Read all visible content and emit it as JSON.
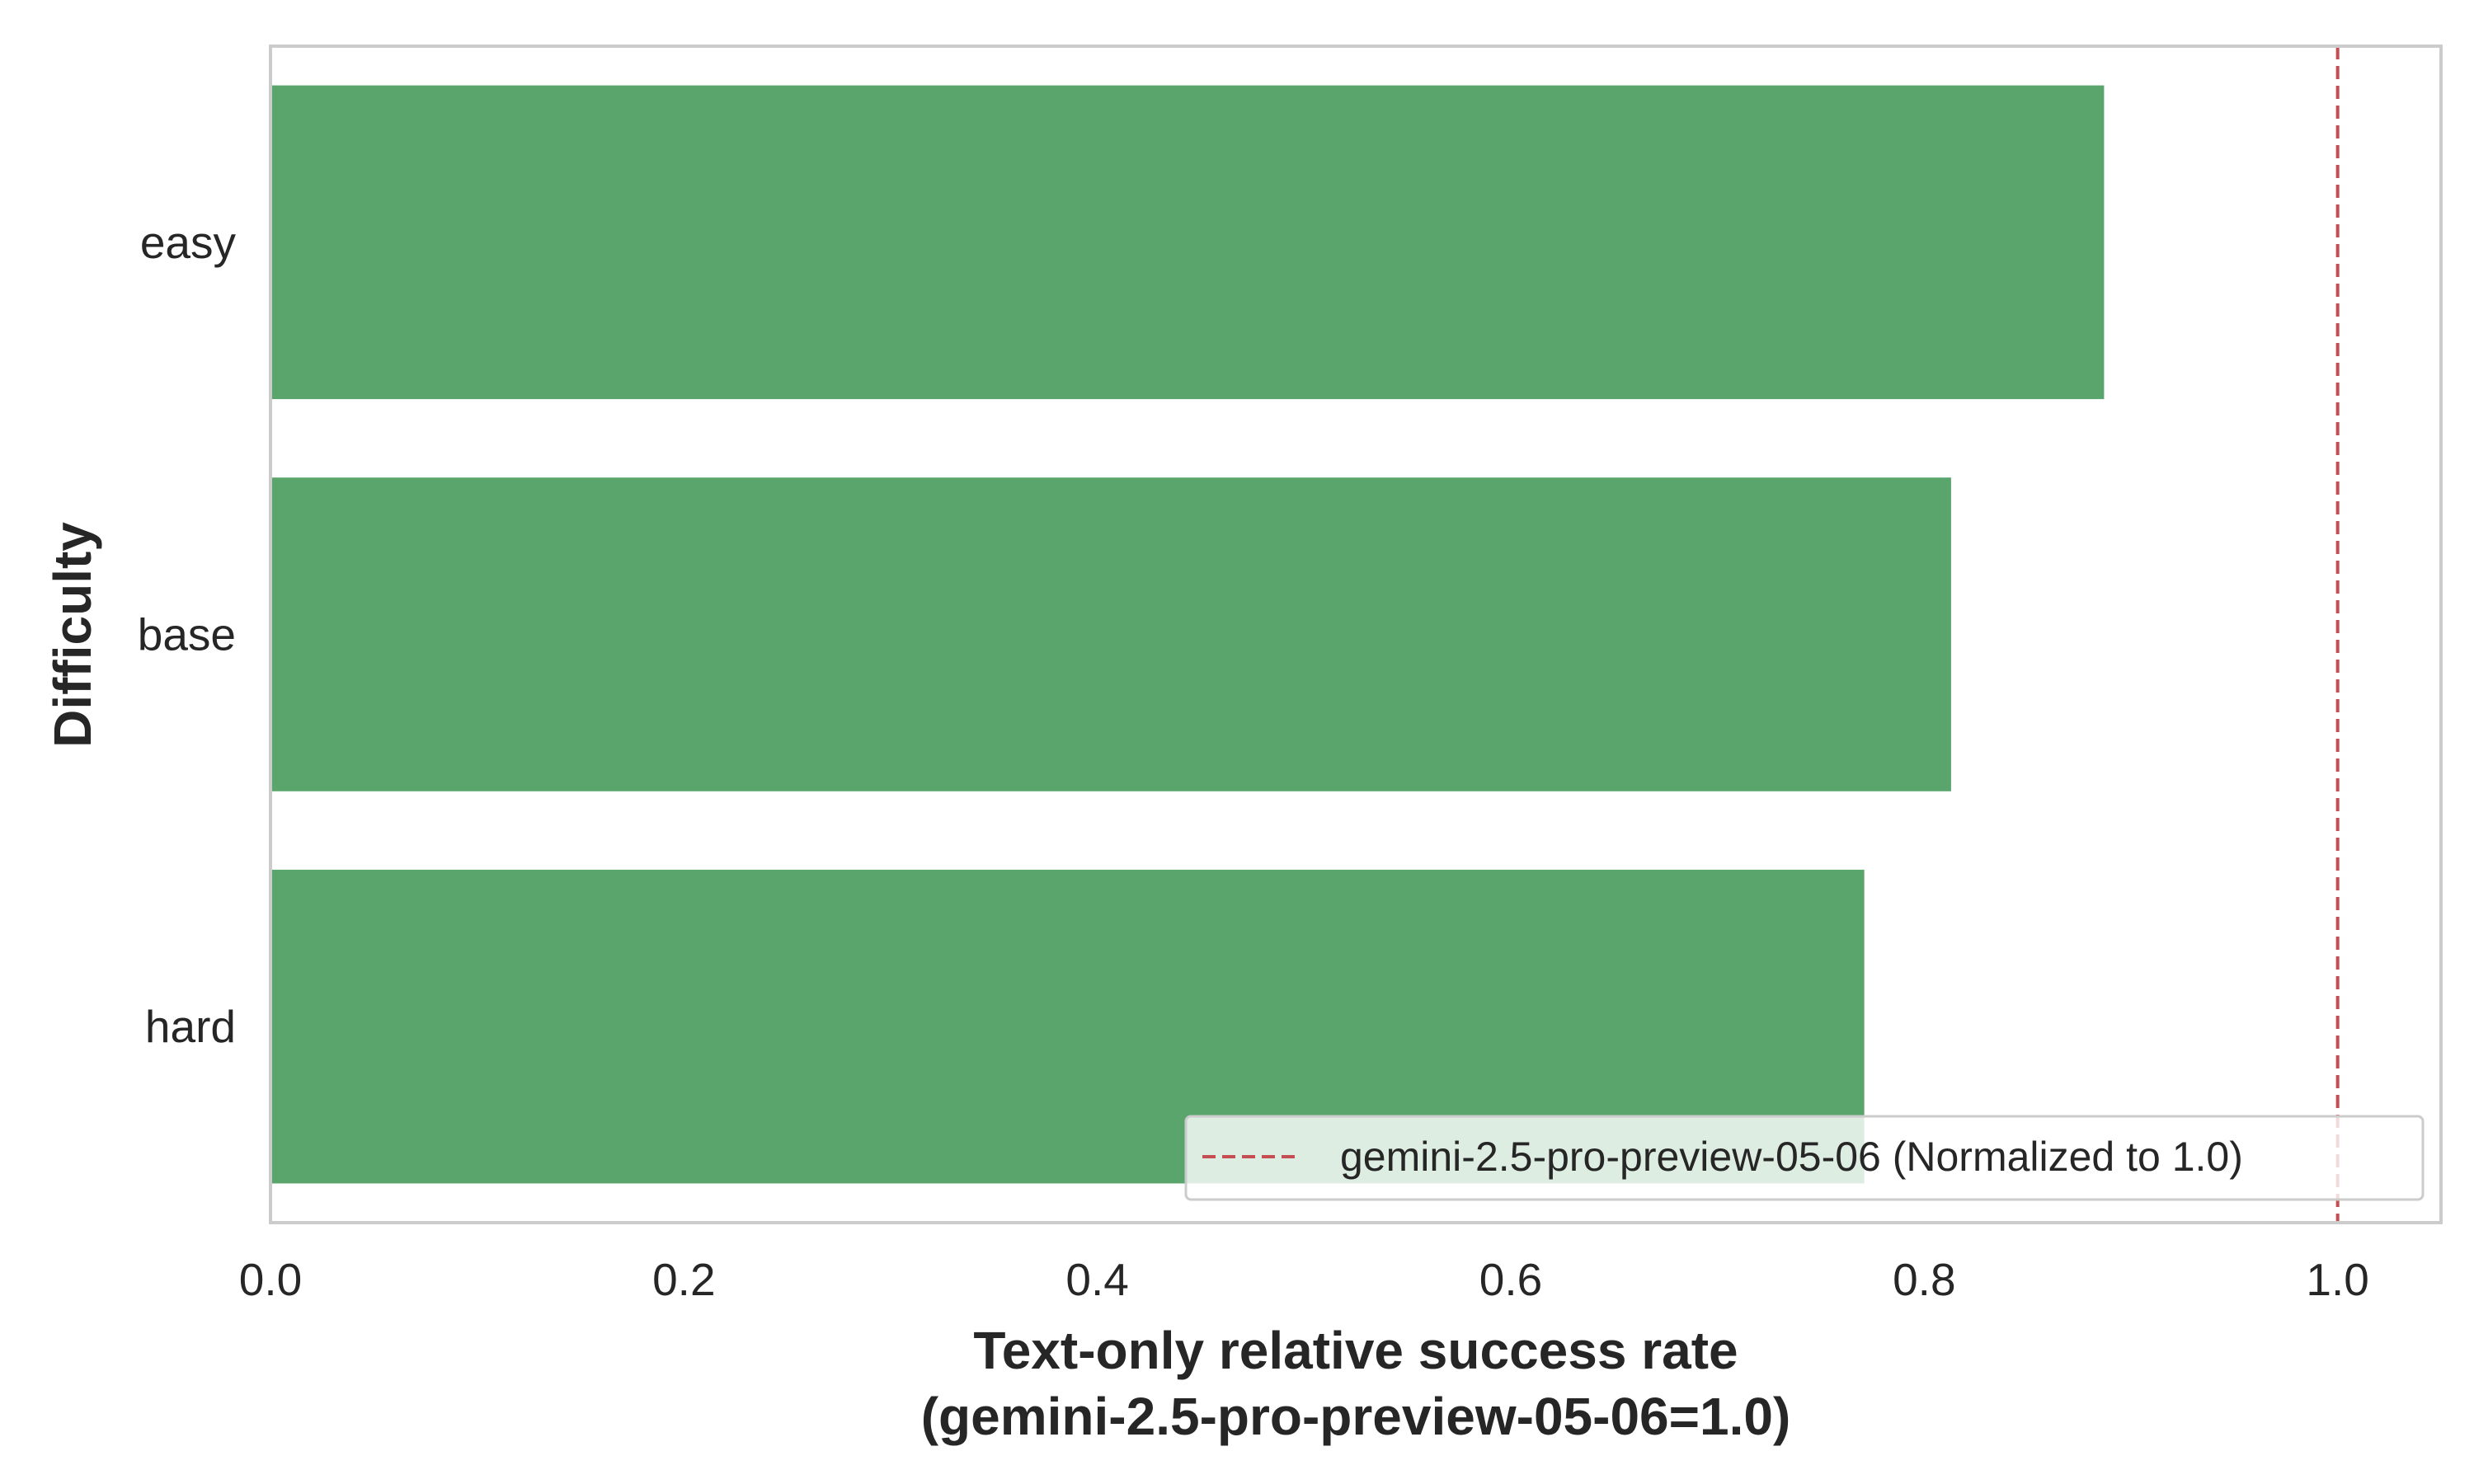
{
  "chart_data": {
    "type": "bar",
    "orientation": "horizontal",
    "categories": [
      "easy",
      "base",
      "hard"
    ],
    "values": [
      0.887,
      0.813,
      0.771
    ],
    "xlim": [
      0.0,
      1.05
    ],
    "xticks": [
      0.0,
      0.2,
      0.4,
      0.6,
      0.8,
      1.0
    ],
    "xtick_labels": [
      "0.0",
      "0.2",
      "0.4",
      "0.6",
      "0.8",
      "1.0"
    ],
    "xlabel_line1": "Text-only relative success rate",
    "xlabel_line2": "(gemini-2.5-pro-preview-05-06=1.0)",
    "ylabel": "Difficulty",
    "reference_line": {
      "x": 1.0,
      "style": "dashed",
      "color": "#c44e52",
      "label": "gemini-2.5-pro-preview-05-06 (Normalized to 1.0)"
    },
    "bar_color": "#59a56c",
    "grid": false,
    "legend_position": "lower right"
  }
}
